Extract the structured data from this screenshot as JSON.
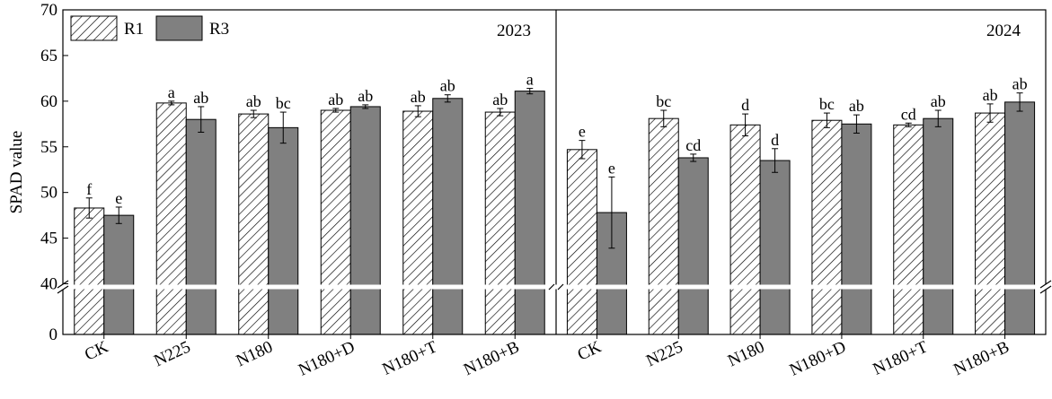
{
  "chart_data": {
    "type": "bar",
    "ylabel": "SPAD value",
    "y_ticks": [
      0,
      40,
      45,
      50,
      55,
      60,
      65,
      70
    ],
    "y_break": [
      0,
      40
    ],
    "ylim": [
      40,
      70
    ],
    "legend": {
      "placement": "top-left",
      "entries": [
        {
          "name": "R1",
          "pattern": "hatched"
        },
        {
          "name": "R3",
          "color": "#808080"
        }
      ]
    },
    "categories": [
      "CK",
      "N225",
      "N180",
      "N180+D",
      "N180+T",
      "N180+B"
    ],
    "panels": [
      {
        "year": "2023",
        "series": [
          {
            "name": "R1",
            "values": [
              48.3,
              59.8,
              58.6,
              59.0,
              58.9,
              58.8
            ],
            "errors": [
              1.1,
              0.2,
              0.4,
              0.2,
              0.6,
              0.4
            ],
            "letters": [
              "f",
              "a",
              "ab",
              "ab",
              "ab",
              "ab"
            ]
          },
          {
            "name": "R3",
            "values": [
              47.5,
              58.0,
              57.1,
              59.4,
              60.3,
              61.1
            ],
            "errors": [
              0.9,
              1.4,
              1.7,
              0.2,
              0.4,
              0.3
            ],
            "letters": [
              "e",
              "ab",
              "bc",
              "ab",
              "ab",
              "a"
            ]
          }
        ]
      },
      {
        "year": "2024",
        "series": [
          {
            "name": "R1",
            "values": [
              54.7,
              58.1,
              57.4,
              57.9,
              57.4,
              58.7
            ],
            "errors": [
              1.0,
              0.9,
              1.2,
              0.8,
              0.2,
              1.0
            ],
            "letters": [
              "e",
              "bc",
              "d",
              "bc",
              "cd",
              "ab"
            ]
          },
          {
            "name": "R3",
            "values": [
              47.8,
              53.8,
              53.5,
              57.5,
              58.1,
              59.9
            ],
            "errors": [
              3.9,
              0.4,
              1.3,
              1.0,
              0.9,
              1.0
            ],
            "letters": [
              "e",
              "cd",
              "d",
              "ab",
              "ab",
              "ab"
            ]
          }
        ]
      }
    ]
  }
}
